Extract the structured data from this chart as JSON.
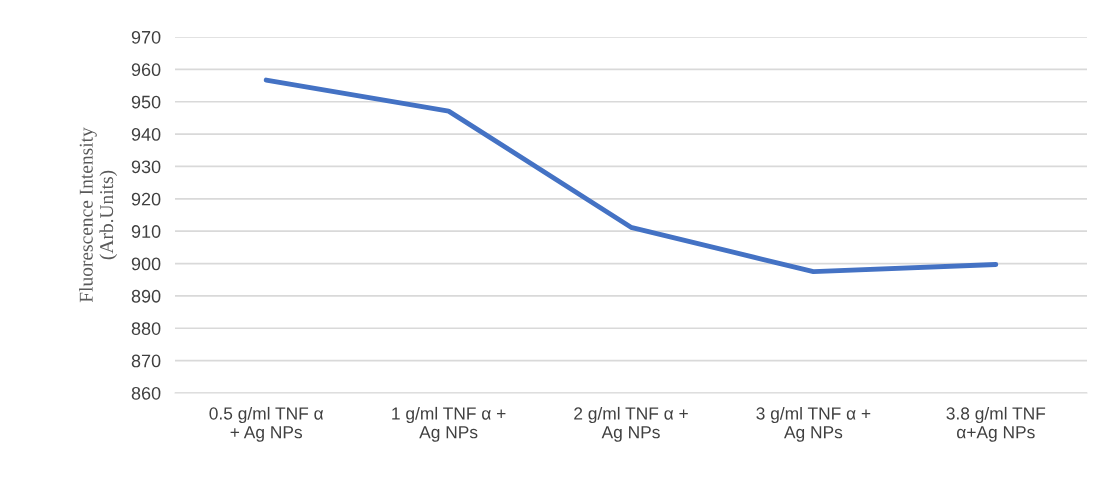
{
  "chart_data": {
    "type": "line",
    "ylabel": "Fluorescence Intensity\n(Arb.Units)",
    "categories": [
      "0.5 g/ml TNF α\n+ Ag NPs",
      "1 g/ml TNF α +\nAg NPs",
      "2 g/ml TNF α +\nAg NPs",
      "3 g/ml TNF α +\nAg NPs",
      "3.8 g/ml TNF\nα+Ag NPs"
    ],
    "series": [
      {
        "color": "#4472c4",
        "values": [
          956.7,
          947.1,
          911.2,
          897.5,
          899.7
        ]
      }
    ],
    "ylim": [
      860,
      970
    ],
    "yticks": [
      860,
      870,
      880,
      890,
      900,
      910,
      920,
      930,
      940,
      950,
      960,
      970
    ],
    "grid": "y",
    "marker": "none",
    "line_style": "solid"
  }
}
